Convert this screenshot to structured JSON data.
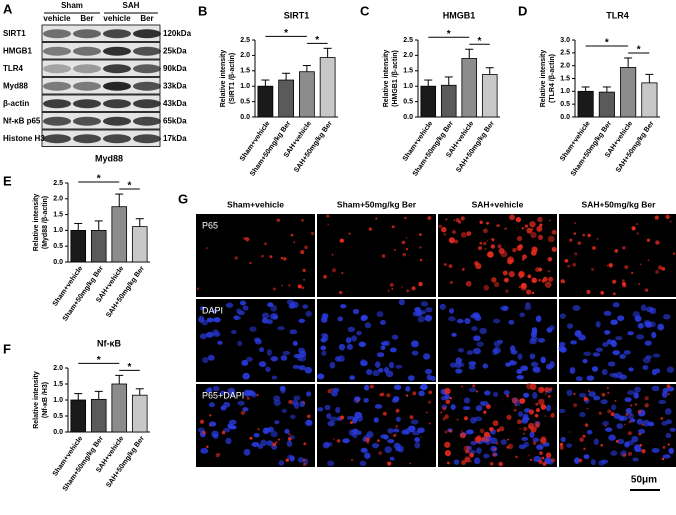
{
  "figure_a": {
    "panel": "A",
    "groups": [
      "Sham",
      "SAH"
    ],
    "lanes": [
      "vehicle",
      "Ber",
      "vehicle",
      "Ber"
    ],
    "rows": [
      {
        "name": "SIRT1",
        "size": "120kDa"
      },
      {
        "name": "HMGB1",
        "size": "25kDa"
      },
      {
        "name": "TLR4",
        "size": "90kDa"
      },
      {
        "name": "Myd88",
        "size": "33kDa"
      },
      {
        "name": "β-actin",
        "size": "43kDa"
      },
      {
        "name": "Nf-κB p65",
        "size": "65kDa"
      },
      {
        "name": "Histone H3",
        "size": "17kDa"
      }
    ]
  },
  "chart_data": [
    {
      "type": "bar",
      "panel": "B",
      "title": "SIRT1",
      "ylabel": [
        "Relative intensity",
        "(SIRT1 /β-actin)"
      ],
      "categories": [
        "Sham+vehicle",
        "Sham+50mg/kg Ber",
        "SAH+vehicle",
        "SAH+50mg/kg Ber"
      ],
      "values": [
        1.0,
        1.2,
        1.47,
        1.93
      ],
      "errors": [
        0.2,
        0.22,
        0.2,
        0.3
      ],
      "colors": [
        "#1a1a1a",
        "#5a5a5a",
        "#8c8c8c",
        "#c8c8c8"
      ],
      "ylim": [
        0,
        2.5
      ],
      "yticks": [
        {
          "value": 0,
          "label": "0.0"
        },
        0.5,
        {
          "value": 1,
          "label": "1.0"
        },
        1.5,
        {
          "value": 2,
          "label": "2.0"
        },
        2.5
      ],
      "annotations": [
        "*",
        "*"
      ]
    },
    {
      "type": "bar",
      "panel": "C",
      "title": "HMGB1",
      "ylabel": [
        "Relative intensity",
        "(HMGB1 /β-actin)"
      ],
      "categories": [
        "Sham+vehicle",
        "Sham+50mg/kg Ber",
        "SAH+vehicle",
        "SAH+50mg/kg Ber"
      ],
      "values": [
        1.0,
        1.03,
        1.9,
        1.38
      ],
      "errors": [
        0.2,
        0.27,
        0.3,
        0.22
      ],
      "colors": [
        "#1a1a1a",
        "#5a5a5a",
        "#8c8c8c",
        "#c8c8c8"
      ],
      "ylim": [
        0,
        2.5
      ],
      "yticks": [
        {
          "value": 0,
          "label": "0.0"
        },
        0.5,
        {
          "value": 1,
          "label": "1.0"
        },
        1.5,
        {
          "value": 2,
          "label": "2.0"
        },
        2.5
      ],
      "annotations": [
        "*",
        "*"
      ]
    },
    {
      "type": "bar",
      "panel": "D",
      "title": "TLR4",
      "ylabel": [
        "Relative intensity",
        "(TLR4 /β-actin)"
      ],
      "categories": [
        "Sham+vehicle",
        "Sham+50mg/kg Ber",
        "SAH+vehicle",
        "SAH+50mg/kg Ber"
      ],
      "values": [
        1.0,
        0.97,
        1.93,
        1.33
      ],
      "errors": [
        0.17,
        0.2,
        0.37,
        0.33
      ],
      "colors": [
        "#1a1a1a",
        "#5a5a5a",
        "#8c8c8c",
        "#c8c8c8"
      ],
      "ylim": [
        0,
        3
      ],
      "yticks": [
        {
          "value": 0,
          "label": "0.0"
        },
        0.5,
        {
          "value": 1,
          "label": "1.0"
        },
        1.5,
        {
          "value": 2,
          "label": "2.0"
        },
        2.5,
        {
          "value": 3,
          "label": "3.0"
        }
      ],
      "annotations": [
        "*",
        "*"
      ]
    },
    {
      "type": "bar",
      "panel": "E",
      "title": "Myd88",
      "ylabel": [
        "Relative intensity",
        "(Myd88 /β-actin)"
      ],
      "categories": [
        "Sham+vehicle",
        "Sham+50mg/kg Ber",
        "SAH+vehicle",
        "SAH+50mg/kg Ber"
      ],
      "values": [
        1.0,
        1.0,
        1.75,
        1.12
      ],
      "errors": [
        0.22,
        0.3,
        0.4,
        0.25
      ],
      "colors": [
        "#1a1a1a",
        "#5a5a5a",
        "#8c8c8c",
        "#c8c8c8"
      ],
      "ylim": [
        0,
        2.5
      ],
      "yticks": [
        {
          "value": 0,
          "label": "0.0"
        },
        0.5,
        {
          "value": 1,
          "label": "1.0"
        },
        1.5,
        {
          "value": 2,
          "label": "2.0"
        },
        2.5
      ],
      "annotations": [
        "*",
        "*"
      ]
    },
    {
      "type": "bar",
      "panel": "F",
      "title": "Nf-κB",
      "ylabel": [
        "Relative intensity",
        "(Nf-κB /H3)"
      ],
      "categories": [
        "Sham+vehicle",
        "Sham+50mg/kg Ber",
        "SAH+vehicle",
        "SAH+50mg/kg Ber"
      ],
      "values": [
        1.0,
        1.02,
        1.5,
        1.15
      ],
      "errors": [
        0.2,
        0.25,
        0.27,
        0.2
      ],
      "colors": [
        "#1a1a1a",
        "#5a5a5a",
        "#8c8c8c",
        "#c8c8c8"
      ],
      "ylim": [
        0,
        2
      ],
      "yticks": [
        {
          "value": 0,
          "label": "0.0"
        },
        0.5,
        {
          "value": 1,
          "label": "1.0"
        },
        1.5,
        {
          "value": 2,
          "label": "2.0"
        }
      ],
      "annotations": [
        "*",
        "*"
      ]
    }
  ],
  "figure_g": {
    "panel": "G",
    "columns": [
      "Sham+vehicle",
      "Sham+50mg/kg Ber",
      "SAH+vehicle",
      "SAH+50mg/kg Ber"
    ],
    "rows": [
      "P65",
      "DAPI",
      "P65+DAPI"
    ],
    "scale_bar": "50μm"
  }
}
